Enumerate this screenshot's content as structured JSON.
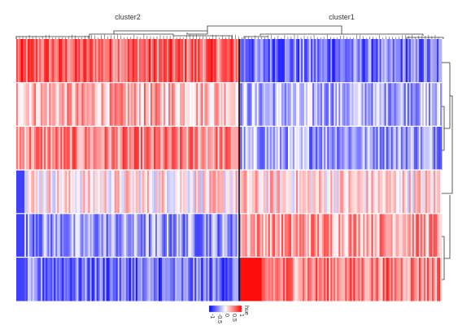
{
  "chart_data": {
    "type": "heatmap",
    "column_clusters": [
      {
        "name": "cluster2"
      },
      {
        "name": "cluster1"
      }
    ],
    "color_scale": {
      "title": "hue",
      "ticks": [
        "1",
        "0.5",
        "0",
        "-0.5",
        "-1"
      ],
      "low": "#0000ff",
      "mid": "#ffffff",
      "high": "#ff0000"
    },
    "rows": [
      {
        "cluster2_mean": 0.6,
        "cluster1_mean": -0.55
      },
      {
        "cluster2_mean": 0.3,
        "cluster1_mean": -0.3
      },
      {
        "cluster2_mean": 0.45,
        "cluster1_mean": -0.35
      },
      {
        "cluster2_mean": 0.1,
        "cluster1_mean": 0.15
      },
      {
        "cluster2_mean": -0.4,
        "cluster1_mean": 0.4
      },
      {
        "cluster2_mean": -0.55,
        "cluster1_mean": 0.5
      }
    ],
    "grid": false,
    "legend_placement": "bottom"
  }
}
